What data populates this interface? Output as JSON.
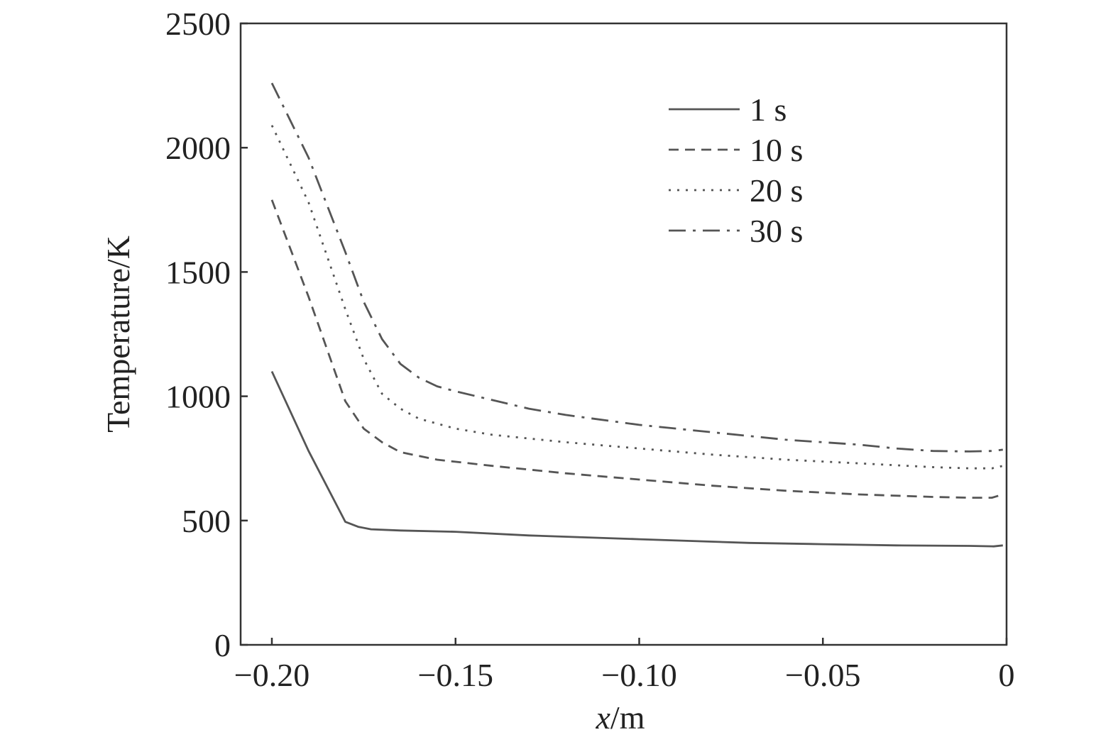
{
  "chart_data": {
    "type": "line",
    "xlabel_italic": "x",
    "xlabel_unit": "/m",
    "ylabel": "Temperature/K",
    "xlim": [
      -0.2085,
      0
    ],
    "ylim": [
      0,
      2500
    ],
    "xticks": [
      -0.2,
      -0.15,
      -0.1,
      -0.05,
      0
    ],
    "xtick_labels": [
      "−0.20",
      "−0.15",
      "−0.10",
      "−0.05",
      "0"
    ],
    "yticks": [
      0,
      500,
      1000,
      1500,
      2000,
      2500
    ],
    "ytick_labels": [
      "0",
      "500",
      "1000",
      "1500",
      "2000",
      "2500"
    ],
    "grid": false,
    "legend_position": "top-right",
    "series": [
      {
        "name": "1 s",
        "style": "solid",
        "x": [
          -0.2,
          -0.19,
          -0.18,
          -0.1765,
          -0.173,
          -0.165,
          -0.15,
          -0.13,
          -0.1,
          -0.07,
          -0.05,
          -0.03,
          -0.01,
          -0.0035,
          -0.001
        ],
        "y": [
          1100,
          780,
          495,
          475,
          465,
          460,
          455,
          440,
          425,
          410,
          405,
          400,
          398,
          396,
          400
        ]
      },
      {
        "name": "10 s",
        "style": "dashed",
        "x": [
          -0.2,
          -0.19,
          -0.18,
          -0.175,
          -0.17,
          -0.165,
          -0.155,
          -0.14,
          -0.12,
          -0.1,
          -0.08,
          -0.06,
          -0.04,
          -0.02,
          -0.01,
          -0.004,
          -0.001
        ],
        "y": [
          1790,
          1400,
          980,
          870,
          815,
          775,
          745,
          720,
          690,
          665,
          640,
          620,
          605,
          595,
          592,
          592,
          605
        ]
      },
      {
        "name": "20 s",
        "style": "dotted",
        "x": [
          -0.2,
          -0.19,
          -0.18,
          -0.175,
          -0.17,
          -0.165,
          -0.16,
          -0.15,
          -0.14,
          -0.12,
          -0.1,
          -0.08,
          -0.06,
          -0.04,
          -0.02,
          -0.01,
          -0.004,
          -0.001
        ],
        "y": [
          2090,
          1780,
          1350,
          1150,
          1010,
          950,
          910,
          870,
          845,
          815,
          790,
          765,
          745,
          730,
          715,
          710,
          710,
          720
        ]
      },
      {
        "name": "30 s",
        "style": "dashdot",
        "x": [
          -0.2,
          -0.19,
          -0.18,
          -0.175,
          -0.17,
          -0.165,
          -0.16,
          -0.155,
          -0.15,
          -0.14,
          -0.13,
          -0.12,
          -0.1,
          -0.08,
          -0.06,
          -0.04,
          -0.03,
          -0.02,
          -0.01,
          -0.004,
          -0.001
        ],
        "y": [
          2260,
          1960,
          1580,
          1380,
          1230,
          1130,
          1075,
          1040,
          1020,
          985,
          950,
          925,
          885,
          855,
          825,
          805,
          790,
          780,
          778,
          780,
          785
        ]
      }
    ]
  }
}
